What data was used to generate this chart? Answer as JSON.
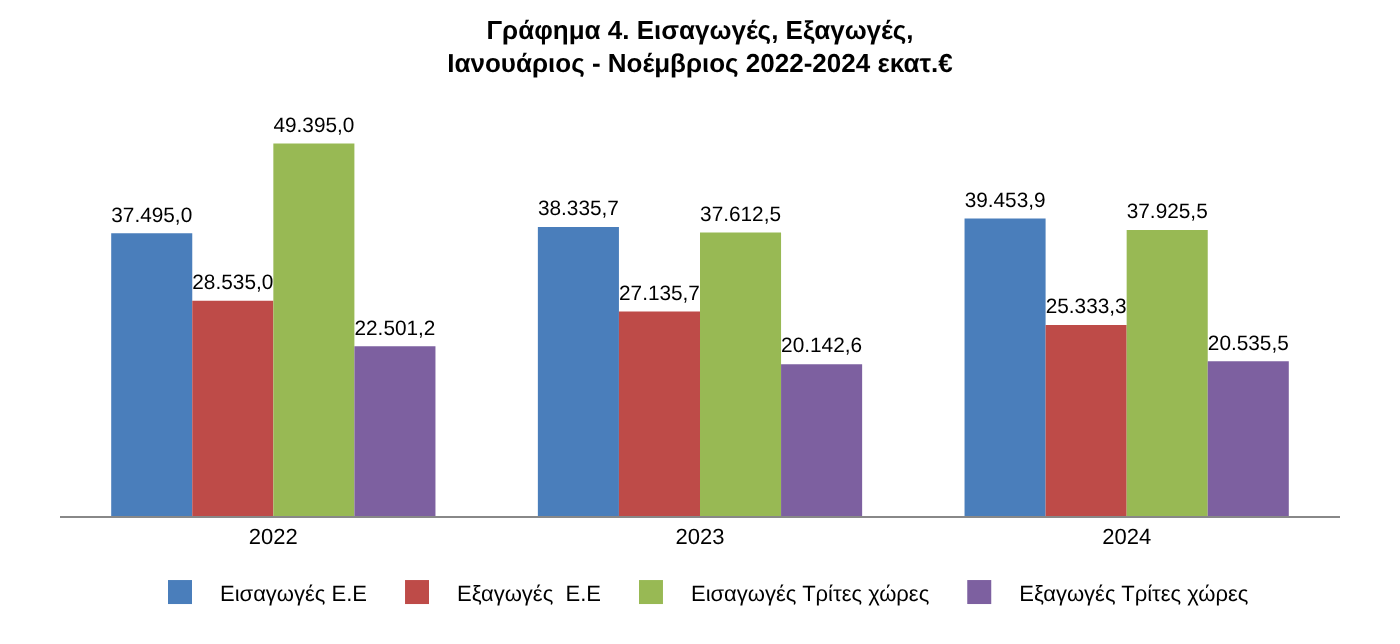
{
  "chart_data": {
    "type": "bar",
    "title": "Γράφημα 4. Εισαγωγές, Εξαγωγές,\nΙανουάριος - Νοέμβριος 2022-2024 εκατ.€",
    "categories": [
      "2022",
      "2023",
      "2024"
    ],
    "series": [
      {
        "name": "Εισαγωγές Ε.Ε",
        "color": "#4a7ebb",
        "values": [
          37495.0,
          38335.7,
          39453.9
        ],
        "value_labels": [
          "37.495,0",
          "38.335,7",
          "39.453,9"
        ]
      },
      {
        "name": "Εξαγωγές  Ε.Ε",
        "color": "#be4b48",
        "values": [
          28535.0,
          27135.7,
          25333.3
        ],
        "value_labels": [
          "28.535,0",
          "27.135,7",
          "25.333,3"
        ]
      },
      {
        "name": "Εισαγωγές Τρίτες χώρες",
        "color": "#98b954",
        "values": [
          49395.0,
          37612.5,
          37925.5
        ],
        "value_labels": [
          "49.395,0",
          "37.612,5",
          "37.925,5"
        ]
      },
      {
        "name": "Εξαγωγές Τρίτες χώρες",
        "color": "#7d60a0",
        "values": [
          22501.2,
          20142.6,
          20535.5
        ],
        "value_labels": [
          "22.501,2",
          "20.142,6",
          "20.535,5"
        ]
      }
    ],
    "legend": "bottom",
    "tick_labels": "x"
  }
}
